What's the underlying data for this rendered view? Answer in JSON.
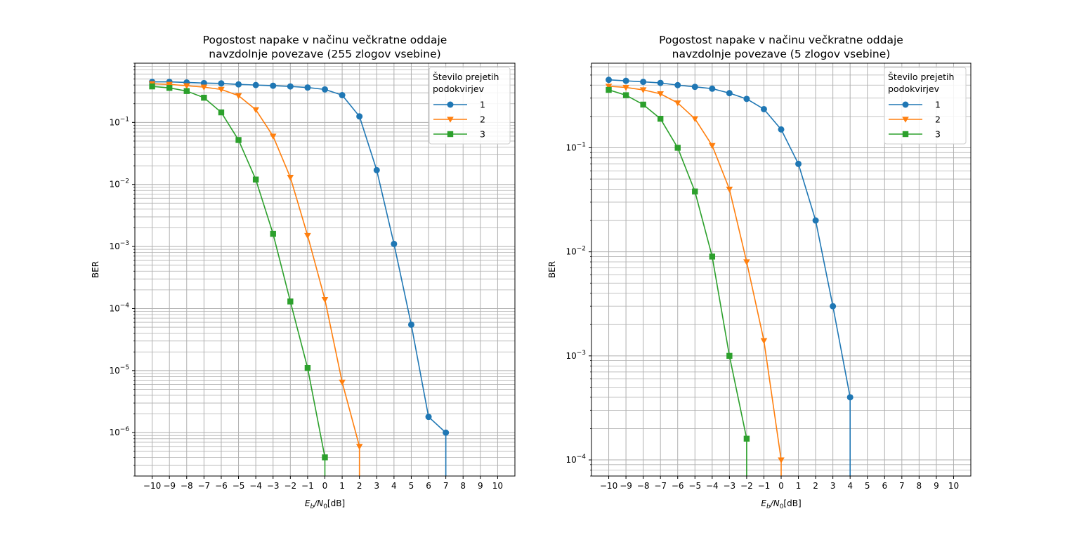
{
  "chart_data": [
    {
      "type": "line",
      "title": [
        "Pogostost napake v načinu večkratne oddaje",
        "navzdolnje povezave (255 zlogov vsebine)"
      ],
      "xlabel_main": "E",
      "xlabel_sub1": "b",
      "xlabel_mid": "/N",
      "xlabel_sub2": "0",
      "xlabel_tail": "[dB]",
      "ylabel": "BER",
      "xlim": [
        -11,
        11
      ],
      "ylim": [
        2e-07,
        0.9
      ],
      "yscale": "log",
      "grid": true,
      "legend": {
        "title": [
          "Število prejetih",
          "podokvirjev"
        ],
        "loc": "top-right"
      },
      "x_ticks": [
        -10,
        -9,
        -8,
        -7,
        -6,
        -5,
        -4,
        -3,
        -2,
        -1,
        0,
        1,
        2,
        3,
        4,
        5,
        6,
        7,
        8,
        9,
        10
      ],
      "x_tick_labels": [
        "−10",
        "−9",
        "−8",
        "−7",
        "−6",
        "−5",
        "−4",
        "−3",
        "−2",
        "−1",
        "0",
        "1",
        "2",
        "3",
        "4",
        "5",
        "6",
        "7",
        "8",
        "9",
        "10"
      ],
      "y_ticks": [
        {
          "value": 1e-06,
          "base": "10",
          "exp": "−6"
        },
        {
          "value": 1e-05,
          "base": "10",
          "exp": "−5"
        },
        {
          "value": 0.0001,
          "base": "10",
          "exp": "−4"
        },
        {
          "value": 0.001,
          "base": "10",
          "exp": "−3"
        },
        {
          "value": 0.01,
          "base": "10",
          "exp": "−2"
        },
        {
          "value": 0.1,
          "base": "10",
          "exp": "−1"
        }
      ],
      "series": [
        {
          "name": "1",
          "color": "#1f77b4",
          "marker": "circle",
          "x": [
            -10,
            -9,
            -8,
            -7,
            -6,
            -5,
            -4,
            -3,
            -2,
            -1,
            0,
            1,
            2,
            3,
            4,
            5,
            6,
            7
          ],
          "y": [
            0.45,
            0.45,
            0.44,
            0.43,
            0.425,
            0.41,
            0.4,
            0.39,
            0.38,
            0.365,
            0.34,
            0.275,
            0.125,
            0.017,
            0.0011,
            5.5e-05,
            1.8e-06,
            1e-06
          ],
          "drop_to_zero_at": 7
        },
        {
          "name": "2",
          "color": "#ff7f0e",
          "marker": "triangle-down",
          "x": [
            -10,
            -9,
            -8,
            -7,
            -6,
            -5,
            -4,
            -3,
            -2,
            -1,
            0,
            1,
            2
          ],
          "y": [
            0.42,
            0.41,
            0.39,
            0.37,
            0.34,
            0.27,
            0.16,
            0.06,
            0.013,
            0.0015,
            0.00014,
            6.5e-06,
            6e-07
          ],
          "drop_to_zero_at": 2
        },
        {
          "name": "3",
          "color": "#2ca02c",
          "marker": "square",
          "x": [
            -10,
            -9,
            -8,
            -7,
            -6,
            -5,
            -4,
            -3,
            -2,
            -1,
            0
          ],
          "y": [
            0.38,
            0.36,
            0.32,
            0.25,
            0.145,
            0.052,
            0.012,
            0.0016,
            0.00013,
            1.1e-05,
            4e-07
          ],
          "drop_to_zero_at": 0
        }
      ]
    },
    {
      "type": "line",
      "title": [
        "Pogostost napake v načinu večkratne oddaje",
        "navzdolnje povezave (5 zlogov vsebine)"
      ],
      "xlabel_main": "E",
      "xlabel_sub1": "b",
      "xlabel_mid": "/N",
      "xlabel_sub2": "0",
      "xlabel_tail": "[dB]",
      "ylabel": "BER",
      "xlim": [
        -11,
        11
      ],
      "ylim": [
        7e-05,
        0.65
      ],
      "yscale": "log",
      "grid": true,
      "legend": {
        "title": [
          "Število prejetih",
          "podokvirjev"
        ],
        "loc": "top-right"
      },
      "x_ticks": [
        -10,
        -9,
        -8,
        -7,
        -6,
        -5,
        -4,
        -3,
        -2,
        -1,
        0,
        1,
        2,
        3,
        4,
        5,
        6,
        7,
        8,
        9,
        10
      ],
      "x_tick_labels": [
        "−10",
        "−9",
        "−8",
        "−7",
        "−6",
        "−5",
        "−4",
        "−3",
        "−2",
        "−1",
        "0",
        "1",
        "2",
        "3",
        "4",
        "5",
        "6",
        "7",
        "8",
        "9",
        "10"
      ],
      "y_ticks": [
        {
          "value": 0.0001,
          "base": "10",
          "exp": "−4"
        },
        {
          "value": 0.001,
          "base": "10",
          "exp": "−3"
        },
        {
          "value": 0.01,
          "base": "10",
          "exp": "−2"
        },
        {
          "value": 0.1,
          "base": "10",
          "exp": "−1"
        }
      ],
      "series": [
        {
          "name": "1",
          "color": "#1f77b4",
          "marker": "circle",
          "x": [
            -10,
            -9,
            -8,
            -7,
            -6,
            -5,
            -4,
            -3,
            -2,
            -1,
            0,
            1,
            2,
            3,
            4
          ],
          "y": [
            0.45,
            0.44,
            0.43,
            0.42,
            0.4,
            0.385,
            0.37,
            0.335,
            0.295,
            0.235,
            0.15,
            0.07,
            0.02,
            0.003,
            0.0004
          ],
          "drop_to_zero_at": 4
        },
        {
          "name": "2",
          "color": "#ff7f0e",
          "marker": "triangle-down",
          "x": [
            -10,
            -9,
            -8,
            -7,
            -6,
            -5,
            -4,
            -3,
            -2,
            -1,
            0
          ],
          "y": [
            0.39,
            0.38,
            0.36,
            0.33,
            0.27,
            0.19,
            0.105,
            0.04,
            0.008,
            0.0014,
            0.0001
          ],
          "drop_to_zero_at": 0
        },
        {
          "name": "3",
          "color": "#2ca02c",
          "marker": "square",
          "x": [
            -10,
            -9,
            -8,
            -7,
            -6,
            -5,
            -4,
            -3,
            -2
          ],
          "y": [
            0.36,
            0.32,
            0.26,
            0.19,
            0.1,
            0.038,
            0.009,
            0.001,
            0.00016
          ],
          "drop_to_zero_at": -2
        }
      ]
    }
  ]
}
